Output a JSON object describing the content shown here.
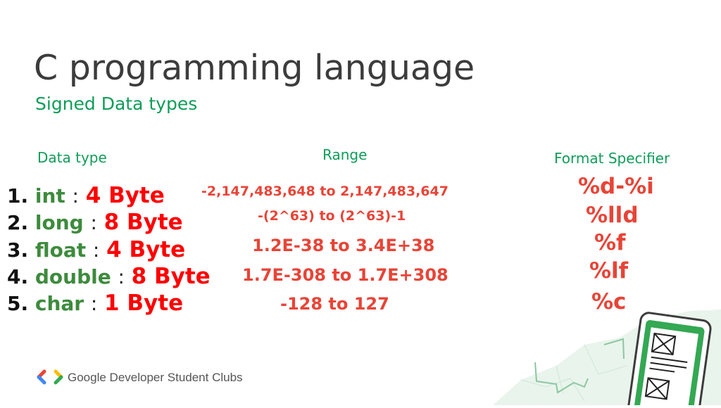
{
  "title": "C programming language",
  "subtitle": "Signed Data types",
  "headers": {
    "type": "Data type",
    "range": "Range",
    "format": "Format Specifier"
  },
  "rows": [
    {
      "num": "1.",
      "name": "int",
      "sep": ":",
      "size": "4 Byte",
      "range": "-2,147,483,648 to 2,147,483,647",
      "format": "%d-%i"
    },
    {
      "num": "2.",
      "name": "long",
      "sep": ":",
      "size": "8 Byte",
      "range": "-(2^63) to (2^63)-1",
      "format": "%lld"
    },
    {
      "num": "3.",
      "name": "float",
      "sep": ":",
      "size": "4 Byte",
      "range": "1.2E-38 to 3.4E+38",
      "format": "%f"
    },
    {
      "num": "4.",
      "name": "double",
      "sep": ":",
      "size": "8 Byte",
      "range": "1.7E-308 to 1.7E+308",
      "format": "%lf"
    },
    {
      "num": "5.",
      "name": "char",
      "sep": ":",
      "size": "1 Byte",
      "range": "-128 to 127",
      "format": "%c"
    }
  ],
  "footer": {
    "brand": "Google Developer Student Clubs",
    "logo_icon": "gdsc-logo-icon"
  },
  "decoration": {
    "icon": "phone-document-illustration-icon"
  },
  "colors": {
    "accent_green": "#0f9d58",
    "name_green": "#3d8b3d",
    "size_red": "#ff0000",
    "value_red": "#e84437",
    "title_gray": "#3c3c3c"
  }
}
